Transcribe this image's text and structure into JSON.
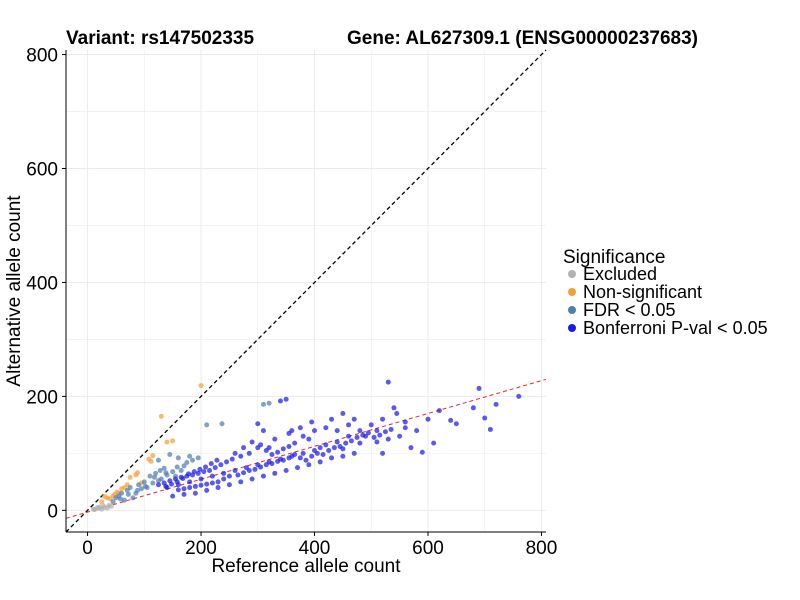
{
  "titles": {
    "variant": "Variant: rs147502335",
    "gene": "Gene: AL627309.1 (ENSG00000237683)"
  },
  "colors": {
    "excluded": "#b3b3b3",
    "non_significant": "#f4a03a",
    "fdr": "#4f7eb0",
    "bonferroni": "#1a1ae6",
    "identity_line": "#000000",
    "fit_line": "#e6262b",
    "grid": "#ebebeb"
  },
  "chart_data": {
    "type": "scatter",
    "xlabel": "Reference allele count",
    "ylabel": "Alternative allele count",
    "xlim": [
      -38,
      808
    ],
    "ylim": [
      -38,
      808
    ],
    "xticks": [
      0,
      200,
      400,
      600,
      800
    ],
    "yticks": [
      0,
      200,
      400,
      600,
      800
    ],
    "grid": true,
    "legend": {
      "title": "Significance",
      "placement": "right",
      "entries": [
        "Excluded",
        "Non-significant",
        "FDR < 0.05",
        "Bonferroni P-val < 0.05"
      ]
    },
    "reference_lines": [
      {
        "kind": "identity",
        "style": "dashed",
        "color": "#000000",
        "from": [
          -38,
          -38
        ],
        "to": [
          808,
          808
        ]
      },
      {
        "kind": "fit",
        "style": "dashed",
        "color": "#e6262b",
        "from": [
          -38,
          -14
        ],
        "to": [
          808,
          230
        ]
      }
    ],
    "series": [
      {
        "name": "Excluded",
        "color": "#b3b3b3",
        "points": [
          [
            10,
            2
          ],
          [
            15,
            3
          ],
          [
            18,
            5
          ],
          [
            20,
            4
          ],
          [
            22,
            6
          ],
          [
            25,
            2
          ],
          [
            28,
            8
          ],
          [
            30,
            5
          ],
          [
            35,
            4
          ],
          [
            38,
            9
          ],
          [
            42,
            7
          ],
          [
            12,
            1
          ]
        ]
      },
      {
        "name": "Non-significant",
        "color": "#f4a03a",
        "points": [
          [
            200,
            219
          ],
          [
            85,
            62
          ],
          [
            88,
            66
          ],
          [
            130,
            165
          ],
          [
            140,
            120
          ],
          [
            108,
            90
          ],
          [
            115,
            96
          ],
          [
            112,
            86
          ],
          [
            150,
            122
          ],
          [
            75,
            58
          ],
          [
            60,
            38
          ],
          [
            52,
            32
          ],
          [
            45,
            25
          ],
          [
            40,
            20
          ],
          [
            35,
            22
          ],
          [
            30,
            24
          ],
          [
            65,
            40
          ],
          [
            70,
            45
          ],
          [
            95,
            48
          ],
          [
            25,
            15
          ],
          [
            48,
            28
          ],
          [
            55,
            30
          ]
        ]
      },
      {
        "name": "FDR < 0.05",
        "color": "#4f7eb0",
        "points": [
          [
            210,
            150
          ],
          [
            237,
            152
          ],
          [
            310,
            186
          ],
          [
            320,
            188
          ],
          [
            125,
            88
          ],
          [
            170,
            78
          ],
          [
            160,
            92
          ],
          [
            145,
            98
          ],
          [
            180,
            95
          ],
          [
            128,
            70
          ],
          [
            110,
            60
          ],
          [
            100,
            50
          ],
          [
            90,
            45
          ],
          [
            75,
            40
          ],
          [
            70,
            35
          ],
          [
            60,
            30
          ],
          [
            55,
            25
          ],
          [
            50,
            22
          ],
          [
            130,
            55
          ],
          [
            120,
            65
          ],
          [
            140,
            62
          ],
          [
            150,
            68
          ],
          [
            165,
            70
          ],
          [
            155,
            60
          ],
          [
            175,
            84
          ],
          [
            135,
            74
          ],
          [
            105,
            40
          ],
          [
            85,
            30
          ],
          [
            95,
            38
          ],
          [
            115,
            48
          ],
          [
            125,
            52
          ],
          [
            65,
            18
          ],
          [
            80,
            22
          ],
          [
            45,
            15
          ],
          [
            58,
            20
          ],
          [
            72,
            28
          ],
          [
            88,
            35
          ],
          [
            102,
            42
          ],
          [
            118,
            58
          ],
          [
            138,
            66
          ],
          [
            158,
            76
          ],
          [
            185,
            88
          ],
          [
            195,
            92
          ]
        ]
      },
      {
        "name": "Bonferroni P-val < 0.05",
        "color": "#1a1ae6",
        "points": [
          [
            690,
            214
          ],
          [
            640,
            158
          ],
          [
            760,
            200
          ],
          [
            720,
            186
          ],
          [
            680,
            180
          ],
          [
            700,
            162
          ],
          [
            710,
            142
          ],
          [
            650,
            152
          ],
          [
            620,
            175
          ],
          [
            600,
            160
          ],
          [
            560,
            145
          ],
          [
            530,
            225
          ],
          [
            540,
            180
          ],
          [
            520,
            160
          ],
          [
            500,
            150
          ],
          [
            480,
            140
          ],
          [
            460,
            130
          ],
          [
            440,
            120
          ],
          [
            420,
            115
          ],
          [
            400,
            105
          ],
          [
            380,
            100
          ],
          [
            360,
            95
          ],
          [
            340,
            90
          ],
          [
            320,
            85
          ],
          [
            300,
            80
          ],
          [
            280,
            75
          ],
          [
            260,
            70
          ],
          [
            240,
            65
          ],
          [
            220,
            60
          ],
          [
            200,
            55
          ],
          [
            180,
            50
          ],
          [
            160,
            45
          ],
          [
            140,
            40
          ],
          [
            510,
            120
          ],
          [
            550,
            130
          ],
          [
            580,
            140
          ],
          [
            610,
            118
          ],
          [
            590,
            102
          ],
          [
            570,
            110
          ],
          [
            530,
            125
          ],
          [
            480,
            118
          ],
          [
            450,
            108
          ],
          [
            470,
            100
          ],
          [
            430,
            92
          ],
          [
            410,
            85
          ],
          [
            390,
            80
          ],
          [
            370,
            75
          ],
          [
            350,
            70
          ],
          [
            330,
            65
          ],
          [
            310,
            60
          ],
          [
            290,
            55
          ],
          [
            270,
            50
          ],
          [
            250,
            45
          ],
          [
            230,
            40
          ],
          [
            210,
            35
          ],
          [
            190,
            30
          ],
          [
            170,
            28
          ],
          [
            150,
            25
          ],
          [
            350,
            195
          ],
          [
            340,
            192
          ],
          [
            300,
            152
          ],
          [
            310,
            140
          ],
          [
            330,
            125
          ],
          [
            355,
            135
          ],
          [
            365,
            118
          ],
          [
            390,
            125
          ],
          [
            410,
            110
          ],
          [
            440,
            140
          ],
          [
            460,
            150
          ],
          [
            470,
            160
          ],
          [
            420,
            145
          ],
          [
            400,
            140
          ],
          [
            380,
            130
          ],
          [
            450,
            95
          ],
          [
            490,
            130
          ],
          [
            510,
            140
          ],
          [
            520,
            100
          ],
          [
            545,
            170
          ],
          [
            560,
            155
          ],
          [
            450,
            170
          ],
          [
            430,
            160
          ],
          [
            395,
            155
          ],
          [
            375,
            145
          ],
          [
            360,
            140
          ],
          [
            320,
            110
          ],
          [
            300,
            110
          ],
          [
            285,
            100
          ],
          [
            270,
            95
          ],
          [
            255,
            90
          ],
          [
            245,
            85
          ],
          [
            235,
            80
          ],
          [
            225,
            75
          ],
          [
            215,
            70
          ],
          [
            205,
            68
          ],
          [
            195,
            65
          ],
          [
            185,
            62
          ],
          [
            175,
            60
          ],
          [
            165,
            58
          ],
          [
            155,
            55
          ],
          [
            145,
            52
          ],
          [
            135,
            48
          ],
          [
            125,
            45
          ],
          [
            260,
            100
          ],
          [
            275,
            110
          ],
          [
            290,
            120
          ],
          [
            305,
            115
          ],
          [
            315,
            105
          ],
          [
            325,
            98
          ],
          [
            335,
            102
          ],
          [
            345,
            108
          ],
          [
            355,
            112
          ],
          [
            365,
            98
          ],
          [
            375,
            92
          ],
          [
            385,
            88
          ],
          [
            395,
            95
          ],
          [
            405,
            100
          ],
          [
            415,
            98
          ],
          [
            425,
            105
          ],
          [
            435,
            110
          ],
          [
            445,
            112
          ],
          [
            455,
            118
          ],
          [
            465,
            122
          ],
          [
            475,
            128
          ],
          [
            485,
            132
          ],
          [
            495,
            136
          ],
          [
            505,
            128
          ],
          [
            515,
            132
          ],
          [
            525,
            138
          ],
          [
            535,
            142
          ],
          [
            250,
            60
          ],
          [
            240,
            55
          ],
          [
            230,
            50
          ],
          [
            220,
            48
          ],
          [
            210,
            46
          ],
          [
            200,
            44
          ],
          [
            190,
            42
          ],
          [
            180,
            40
          ],
          [
            170,
            38
          ],
          [
            160,
            36
          ],
          [
            265,
            62
          ],
          [
            275,
            66
          ],
          [
            285,
            70
          ],
          [
            295,
            72
          ],
          [
            305,
            76
          ],
          [
            315,
            80
          ],
          [
            325,
            82
          ],
          [
            335,
            86
          ],
          [
            345,
            88
          ],
          [
            355,
            92
          ],
          [
            228,
            88
          ],
          [
            218,
            82
          ],
          [
            208,
            76
          ],
          [
            198,
            72
          ],
          [
            188,
            68
          ],
          [
            178,
            64
          ],
          [
            168,
            56
          ],
          [
            158,
            50
          ],
          [
            148,
            46
          ],
          [
            138,
            42
          ]
        ]
      }
    ]
  }
}
